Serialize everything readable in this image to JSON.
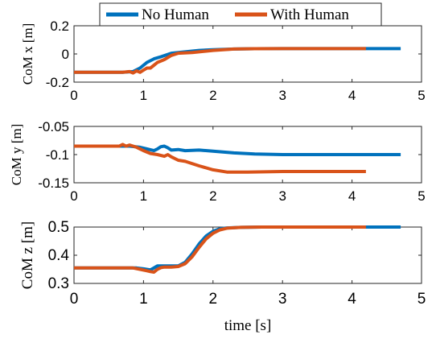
{
  "chart_data": [
    {
      "type": "line",
      "ylabel": "CoM x [m]",
      "xlim": [
        0,
        5
      ],
      "ylim": [
        -0.2,
        0.2
      ],
      "xticks": [
        "0",
        "1",
        "2",
        "3",
        "4",
        "5"
      ],
      "yticks": [
        "-0.2",
        "0",
        "0.2"
      ],
      "grid": false,
      "series": [
        {
          "name": "No Human",
          "color": "#0072BD",
          "x": [
            0,
            0.7,
            0.85,
            0.95,
            1.05,
            1.15,
            1.25,
            1.4,
            1.6,
            1.8,
            2.0,
            2.3,
            2.6,
            3.0,
            3.5,
            4.0,
            4.7
          ],
          "y": [
            -0.13,
            -0.13,
            -0.125,
            -0.1,
            -0.06,
            -0.035,
            -0.02,
            0.005,
            0.015,
            0.025,
            0.03,
            0.035,
            0.037,
            0.038,
            0.038,
            0.038,
            0.038
          ]
        },
        {
          "name": "With Human",
          "color": "#D95319",
          "x": [
            0,
            0.7,
            0.8,
            0.85,
            0.9,
            0.95,
            1.0,
            1.05,
            1.1,
            1.15,
            1.2,
            1.3,
            1.4,
            1.5,
            1.7,
            2.0,
            2.3,
            2.6,
            3.0,
            3.5,
            4.0,
            4.2
          ],
          "y": [
            -0.13,
            -0.13,
            -0.125,
            -0.135,
            -0.12,
            -0.13,
            -0.115,
            -0.1,
            -0.1,
            -0.08,
            -0.06,
            -0.04,
            -0.01,
            0.005,
            0.01,
            0.025,
            0.035,
            0.037,
            0.038,
            0.038,
            0.038,
            0.038
          ]
        }
      ]
    },
    {
      "type": "line",
      "ylabel": "CoM y [m]",
      "xlim": [
        0,
        5
      ],
      "ylim": [
        -0.15,
        -0.05
      ],
      "xticks": [
        "0",
        "1",
        "2",
        "3",
        "4",
        "5"
      ],
      "yticks": [
        "-0.15",
        "-0.1",
        "-0.05"
      ],
      "grid": false,
      "series": [
        {
          "name": "No Human",
          "color": "#0072BD",
          "x": [
            0,
            0.8,
            0.95,
            1.05,
            1.15,
            1.2,
            1.25,
            1.3,
            1.35,
            1.4,
            1.5,
            1.6,
            1.8,
            2.0,
            2.3,
            2.6,
            3.0,
            3.5,
            4.0,
            4.7
          ],
          "y": [
            -0.085,
            -0.085,
            -0.087,
            -0.09,
            -0.093,
            -0.09,
            -0.086,
            -0.085,
            -0.088,
            -0.092,
            -0.091,
            -0.093,
            -0.092,
            -0.094,
            -0.097,
            -0.099,
            -0.1,
            -0.1,
            -0.1,
            -0.1
          ]
        },
        {
          "name": "With Human",
          "color": "#D95319",
          "x": [
            0,
            0.65,
            0.7,
            0.75,
            0.8,
            0.9,
            1.0,
            1.1,
            1.2,
            1.3,
            1.35,
            1.4,
            1.5,
            1.6,
            1.8,
            2.0,
            2.2,
            2.5,
            3.0,
            3.5,
            4.0,
            4.2
          ],
          "y": [
            -0.085,
            -0.085,
            -0.082,
            -0.085,
            -0.083,
            -0.087,
            -0.093,
            -0.098,
            -0.1,
            -0.103,
            -0.1,
            -0.104,
            -0.11,
            -0.112,
            -0.12,
            -0.127,
            -0.131,
            -0.131,
            -0.13,
            -0.13,
            -0.13,
            -0.13
          ]
        }
      ]
    },
    {
      "type": "line",
      "ylabel": "CoM z [m]",
      "xlabel": "time [s]",
      "xlim": [
        0,
        5
      ],
      "ylim": [
        0.3,
        0.5
      ],
      "xticks": [
        "0",
        "1",
        "2",
        "3",
        "4",
        "5"
      ],
      "yticks": [
        "0.3",
        "0.4",
        "0.5"
      ],
      "grid": false,
      "series": [
        {
          "name": "No Human",
          "color": "#0072BD",
          "x": [
            0,
            0.9,
            1.0,
            1.1,
            1.2,
            1.3,
            1.4,
            1.5,
            1.6,
            1.7,
            1.8,
            1.9,
            2.0,
            2.1,
            2.2,
            2.4,
            2.7,
            3.0,
            3.5,
            4.0,
            4.7
          ],
          "y": [
            0.355,
            0.355,
            0.352,
            0.348,
            0.362,
            0.362,
            0.362,
            0.362,
            0.375,
            0.405,
            0.44,
            0.468,
            0.485,
            0.494,
            0.497,
            0.499,
            0.5,
            0.5,
            0.5,
            0.5,
            0.5
          ]
        },
        {
          "name": "With Human",
          "color": "#D95319",
          "x": [
            0,
            0.85,
            0.95,
            1.05,
            1.1,
            1.15,
            1.2,
            1.25,
            1.3,
            1.4,
            1.5,
            1.6,
            1.7,
            1.8,
            1.9,
            2.0,
            2.1,
            2.2,
            2.4,
            2.7,
            3.0,
            3.5,
            4.0,
            4.2
          ],
          "y": [
            0.355,
            0.355,
            0.35,
            0.345,
            0.342,
            0.34,
            0.35,
            0.356,
            0.358,
            0.358,
            0.36,
            0.37,
            0.395,
            0.428,
            0.458,
            0.478,
            0.49,
            0.496,
            0.499,
            0.5,
            0.5,
            0.5,
            0.5,
            0.5
          ]
        }
      ]
    }
  ],
  "legend": {
    "placement": "top",
    "entries": [
      {
        "label": "No Human",
        "color": "#0072BD"
      },
      {
        "label": "With Human",
        "color": "#D95319"
      }
    ]
  }
}
